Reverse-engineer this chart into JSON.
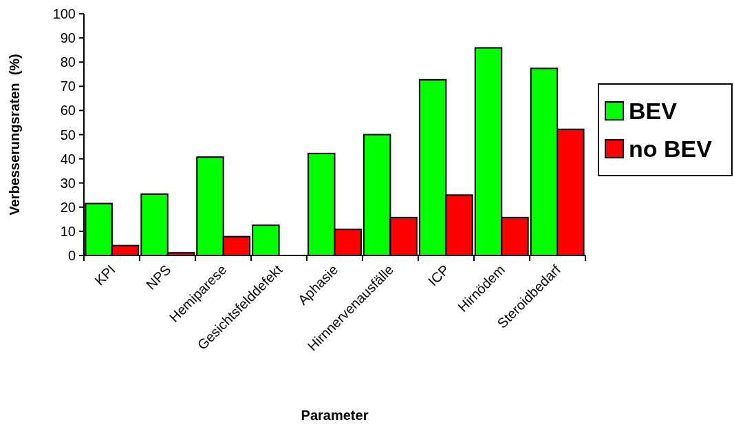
{
  "chart_data": {
    "type": "bar",
    "xlabel": "Parameter",
    "ylabel": "Verbesserungsraten  (%)",
    "categories": [
      "KPI",
      "NPS",
      "Hemiparese",
      "Gesichtsfelddefekt",
      "Aphasie",
      "Hirnnervenausfälle",
      "ICP",
      "Hirnödem",
      "Steroidbedarf"
    ],
    "series": [
      {
        "name": "BEV",
        "color": "#00ff00",
        "values": [
          21.5,
          25.4,
          40.7,
          12.5,
          42.2,
          50,
          72.7,
          85.9,
          77.4
        ]
      },
      {
        "name": "no BEV",
        "color": "#ff0000",
        "values": [
          4.1,
          1.1,
          7.8,
          0,
          10.8,
          15.7,
          25,
          15.7,
          52.2
        ]
      }
    ],
    "ylim": [
      0,
      100
    ],
    "yticks": [
      0,
      10,
      20,
      30,
      40,
      50,
      60,
      70,
      80,
      90,
      100
    ],
    "grid": false,
    "legend": "right"
  }
}
